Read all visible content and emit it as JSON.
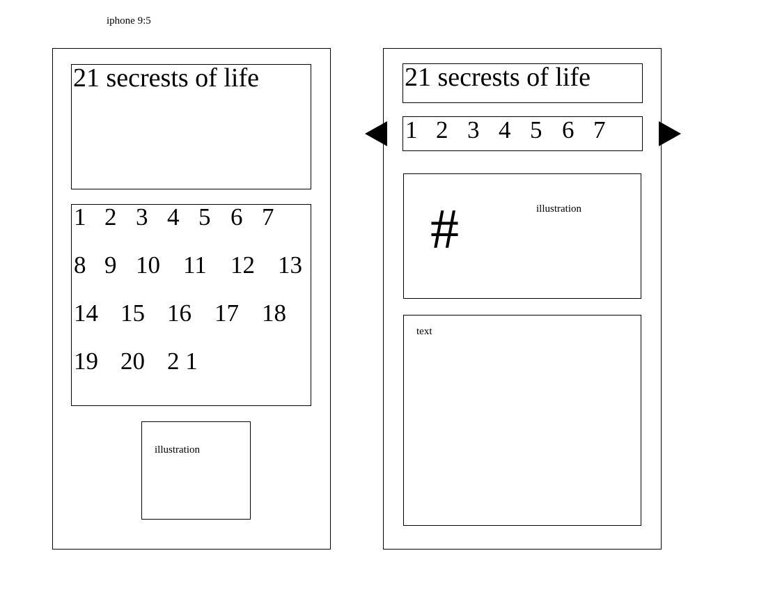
{
  "header": {
    "device_label": "iphone 9:5"
  },
  "screen_left": {
    "title": "21 secrests of life",
    "grid_rows": [
      [
        "1",
        "2",
        "3",
        "4",
        "5",
        "6",
        "7"
      ],
      [
        "8",
        "9",
        "10",
        "11",
        "12",
        "13"
      ],
      [
        "14",
        "15",
        "16",
        "17",
        "18"
      ],
      [
        "19",
        "20",
        "2 1"
      ]
    ],
    "illustration_label": "illustration"
  },
  "screen_right": {
    "title": "21 secrests of life",
    "chapter_numbers": [
      "1",
      "2",
      "3",
      "4",
      "5",
      "6",
      "7"
    ],
    "prev_icon": "triangle-left",
    "next_icon": "triangle-right",
    "chapter_symbol": "#",
    "illustration_label": "illustration",
    "text_label": "text"
  }
}
